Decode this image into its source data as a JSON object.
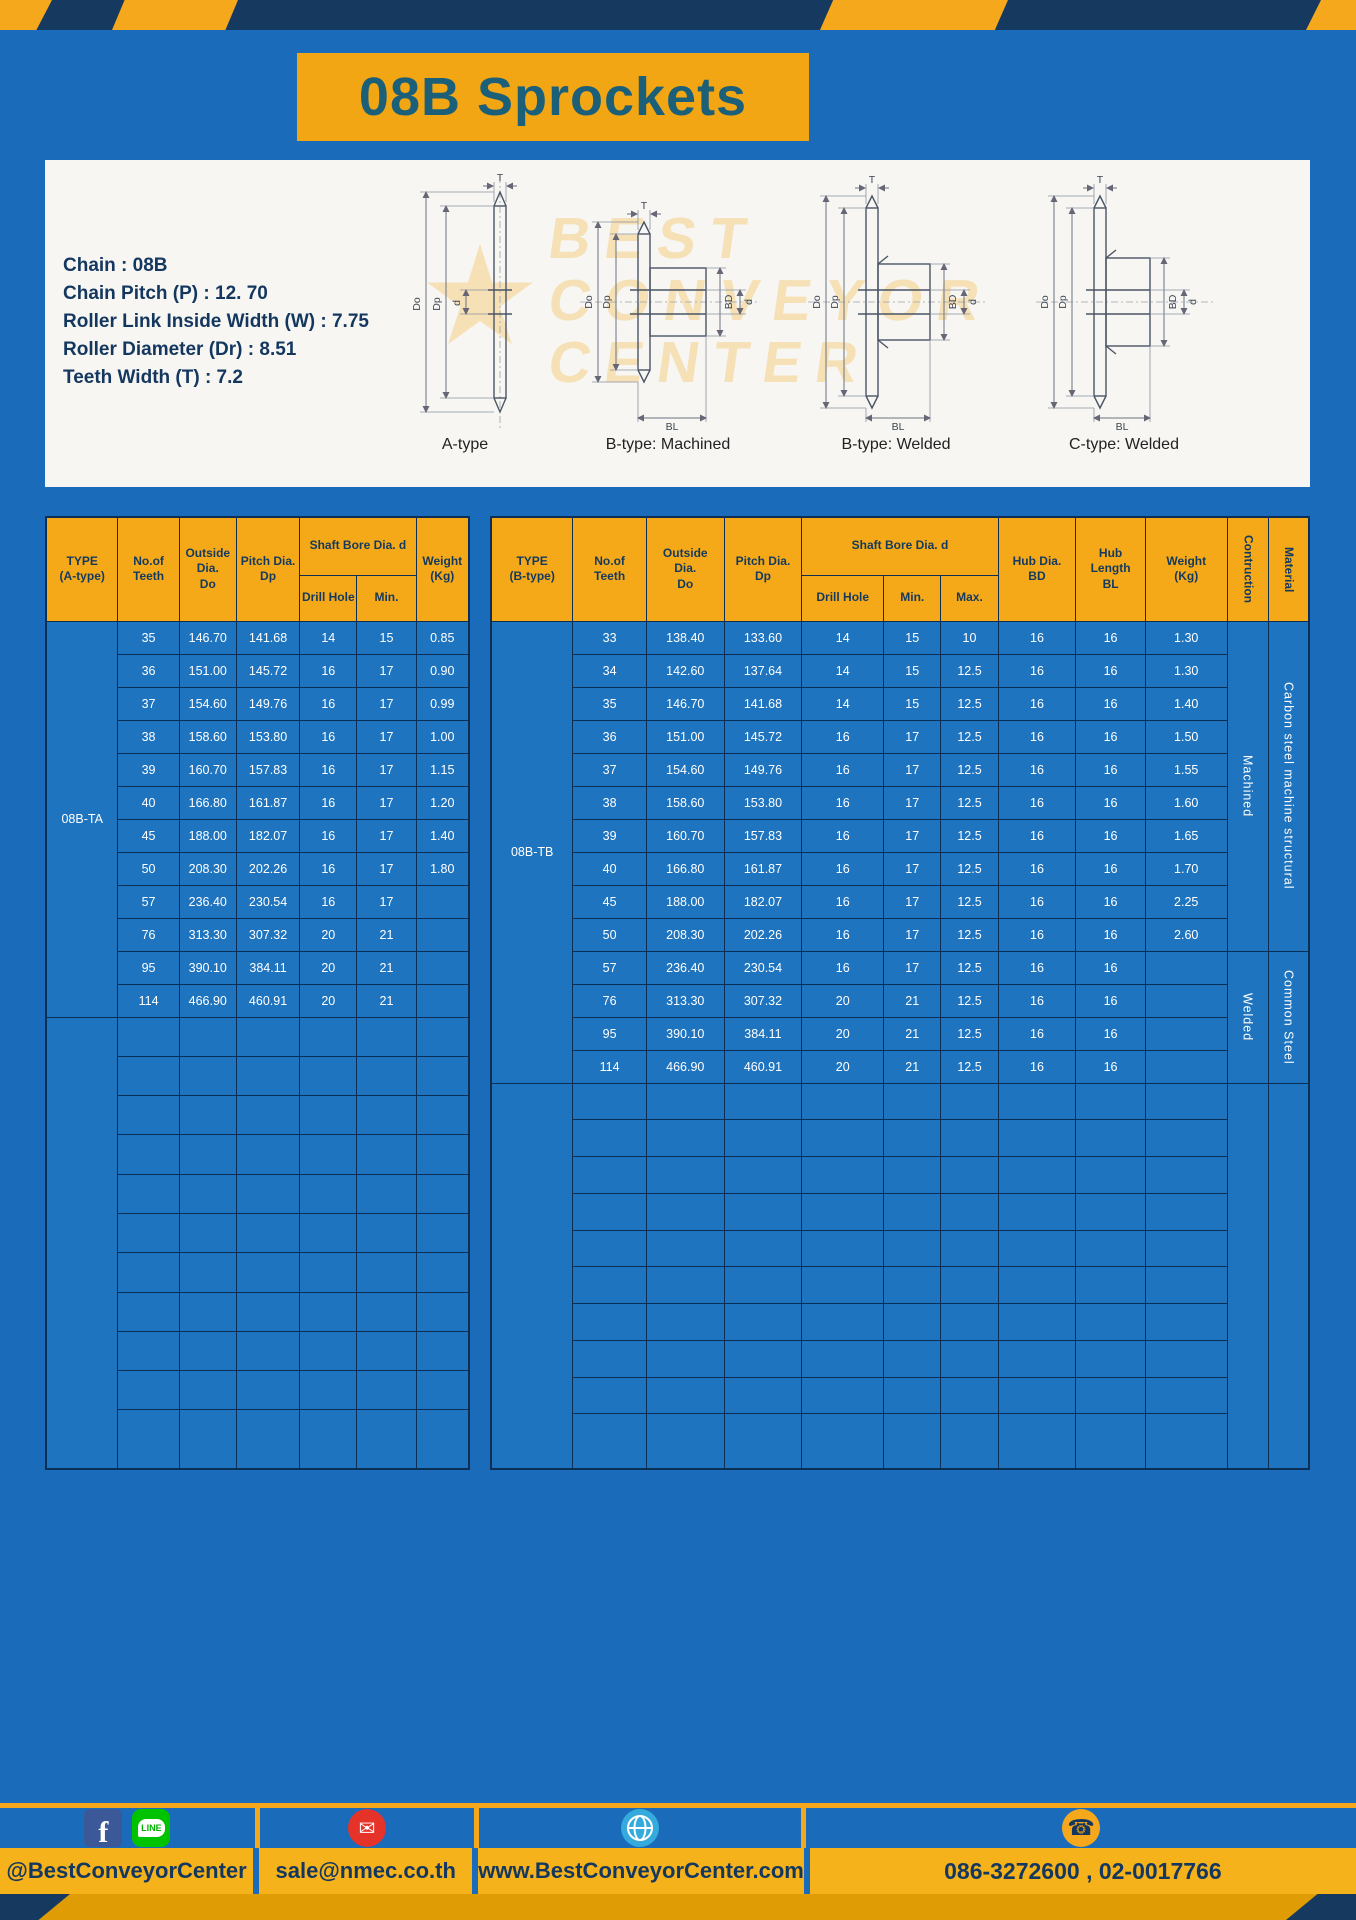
{
  "title": "08B Sprockets",
  "specs": [
    "Chain : 08B",
    "Chain Pitch (P) : 12. 70",
    "Roller Link Inside Width (W) : 7.75",
    "Roller Diameter (Dr) : 8.51",
    "Teeth Width (T) : 7.2"
  ],
  "diagram": {
    "watermark": [
      "BEST",
      "CONVEYOR",
      "CENTER"
    ],
    "captions": [
      "A-type",
      "B-type: Machined",
      "B-type: Welded",
      "C-type: Welded"
    ],
    "dim_labels": {
      "t": "T",
      "do": "Do",
      "dp": "Dp",
      "d": "d",
      "bd": "BD",
      "bl": "BL"
    }
  },
  "table_a": {
    "head": {
      "type_1": "TYPE",
      "type_2": "(A-type)",
      "teeth_1": "No.of",
      "teeth_2": "Teeth",
      "outside_1": "Outside",
      "outside_2": "Dia.",
      "outside_3": "Do",
      "pitch_1": "Pitch Dia.",
      "pitch_2": "Dp",
      "shaft": "Shaft Bore Dia. d",
      "drill": "Drill Hole",
      "min": "Min.",
      "weight_1": "Weight",
      "weight_2": "(Kg)"
    },
    "type_label": "08B-TA",
    "rows": [
      [
        "35",
        "146.70",
        "141.68",
        "14",
        "15",
        "0.85"
      ],
      [
        "36",
        "151.00",
        "145.72",
        "16",
        "17",
        "0.90"
      ],
      [
        "37",
        "154.60",
        "149.76",
        "16",
        "17",
        "0.99"
      ],
      [
        "38",
        "158.60",
        "153.80",
        "16",
        "17",
        "1.00"
      ],
      [
        "39",
        "160.70",
        "157.83",
        "16",
        "17",
        "1.15"
      ],
      [
        "40",
        "166.80",
        "161.87",
        "16",
        "17",
        "1.20"
      ],
      [
        "45",
        "188.00",
        "182.07",
        "16",
        "17",
        "1.40"
      ],
      [
        "50",
        "208.30",
        "202.26",
        "16",
        "17",
        "1.80"
      ],
      [
        "57",
        "236.40",
        "230.54",
        "16",
        "17",
        ""
      ],
      [
        "76",
        "313.30",
        "307.32",
        "20",
        "21",
        ""
      ],
      [
        "95",
        "390.10",
        "384.11",
        "20",
        "21",
        ""
      ],
      [
        "114",
        "466.90",
        "460.91",
        "20",
        "21",
        ""
      ]
    ],
    "empty_rows": 11
  },
  "table_b": {
    "head": {
      "type_1": "TYPE",
      "type_2": "(B-type)",
      "teeth_1": "No.of",
      "teeth_2": "Teeth",
      "outside_1": "Outside",
      "outside_2": "Dia.",
      "outside_3": "Do",
      "pitch_1": "Pitch Dia.",
      "pitch_2": "Dp",
      "shaft": "Shaft Bore Dia. d",
      "drill": "Drill Hole",
      "min": "Min.",
      "max": "Max.",
      "hub_dia_1": "Hub Dia.",
      "hub_dia_2": "BD",
      "hub_len_1": "Hub",
      "hub_len_2": "Length",
      "hub_len_3": "BL",
      "weight_1": "Weight",
      "weight_2": "(Kg)",
      "construction": "Contruction",
      "material": "Material"
    },
    "type_label": "08B-TB",
    "rows": [
      [
        "33",
        "138.40",
        "133.60",
        "14",
        "15",
        "10",
        "16",
        "16",
        "1.30"
      ],
      [
        "34",
        "142.60",
        "137.64",
        "14",
        "15",
        "12.5",
        "16",
        "16",
        "1.30"
      ],
      [
        "35",
        "146.70",
        "141.68",
        "14",
        "15",
        "12.5",
        "16",
        "16",
        "1.40"
      ],
      [
        "36",
        "151.00",
        "145.72",
        "16",
        "17",
        "12.5",
        "16",
        "16",
        "1.50"
      ],
      [
        "37",
        "154.60",
        "149.76",
        "16",
        "17",
        "12.5",
        "16",
        "16",
        "1.55"
      ],
      [
        "38",
        "158.60",
        "153.80",
        "16",
        "17",
        "12.5",
        "16",
        "16",
        "1.60"
      ],
      [
        "39",
        "160.70",
        "157.83",
        "16",
        "17",
        "12.5",
        "16",
        "16",
        "1.65"
      ],
      [
        "40",
        "166.80",
        "161.87",
        "16",
        "17",
        "12.5",
        "16",
        "16",
        "1.70"
      ],
      [
        "45",
        "188.00",
        "182.07",
        "16",
        "17",
        "12.5",
        "16",
        "16",
        "2.25"
      ],
      [
        "50",
        "208.30",
        "202.26",
        "16",
        "17",
        "12.5",
        "16",
        "16",
        "2.60"
      ],
      [
        "57",
        "236.40",
        "230.54",
        "16",
        "17",
        "12.5",
        "16",
        "16",
        ""
      ],
      [
        "76",
        "313.30",
        "307.32",
        "20",
        "21",
        "12.5",
        "16",
        "16",
        ""
      ],
      [
        "95",
        "390.10",
        "384.11",
        "20",
        "21",
        "12.5",
        "16",
        "16",
        ""
      ],
      [
        "114",
        "466.90",
        "460.91",
        "20",
        "21",
        "12.5",
        "16",
        "16",
        ""
      ]
    ],
    "construction_groups": [
      {
        "label": "Machined",
        "start": 0,
        "span": 10
      },
      {
        "label": "Welded",
        "start": 10,
        "span": 4
      }
    ],
    "material_groups": [
      {
        "label": "Carbon steel  machine  structural",
        "start": 0,
        "span": 10
      },
      {
        "label": "Common  Steel",
        "start": 10,
        "span": 4
      }
    ],
    "empty_rows": 10
  },
  "footer": {
    "sections": [
      {
        "name": "social",
        "label": "@BestConveyorCenter"
      },
      {
        "name": "email",
        "label": "sale@nmec.co.th"
      },
      {
        "name": "website",
        "label": "www.BestConveyorCenter.com"
      },
      {
        "name": "phone",
        "label": "086-3272600 , 02-0017766"
      }
    ],
    "facebook_letter": "f",
    "line_label": "LINE",
    "mail_glyph": "✉",
    "phone_glyph": "☎"
  },
  "colors": {
    "page_blue": "#1a6cba",
    "navy": "#16395f",
    "accent_yellow": "#f5a81c",
    "table_cell_blue": "#1f74bf",
    "title_teal": "#1b6078"
  }
}
